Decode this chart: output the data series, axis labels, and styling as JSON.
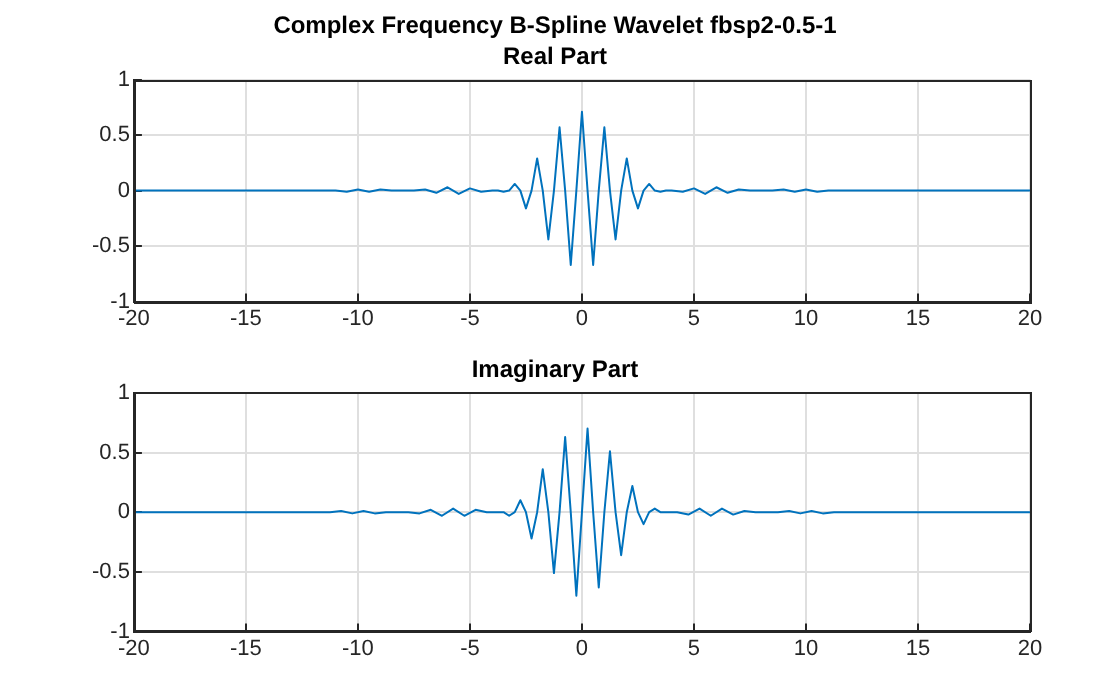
{
  "chart_data": [
    {
      "type": "line",
      "title": "Complex Frequency B-Spline Wavelet fbsp2-0.5-1",
      "subtitle": "Real Part",
      "series": [
        {
          "color": "#0072bd",
          "x": [
            -20,
            -19.5,
            -19,
            -18.5,
            -18,
            -17.5,
            -17,
            -16.5,
            -16,
            -15.5,
            -15,
            -14.5,
            -14,
            -13.5,
            -13,
            -12.5,
            -12,
            -11.5,
            -11,
            -10.5,
            -10,
            -9.5,
            -9,
            -8.5,
            -8,
            -7.5,
            -7,
            -6.5,
            -6,
            -5.5,
            -5,
            -4.5,
            -4,
            -3.75,
            -3.5,
            -3.25,
            -3,
            -2.75,
            -2.5,
            -2.25,
            -2,
            -1.75,
            -1.5,
            -1.25,
            -1,
            -0.75,
            -0.5,
            -0.25,
            0,
            0.25,
            0.5,
            0.75,
            1,
            1.25,
            1.5,
            1.75,
            2,
            2.25,
            2.5,
            2.75,
            3,
            3.25,
            3.5,
            3.75,
            4,
            4.5,
            5,
            5.5,
            6,
            6.5,
            7,
            7.5,
            8,
            8.5,
            9,
            9.5,
            10,
            10.5,
            11,
            11.5,
            12,
            12.5,
            13,
            13.5,
            14,
            14.5,
            15,
            15.5,
            16,
            16.5,
            17,
            17.5,
            18,
            18.5,
            19,
            19.5,
            20
          ],
          "values": [
            0,
            0,
            0,
            0,
            0,
            0,
            0,
            0,
            0,
            0,
            0,
            0,
            0,
            0,
            0,
            0,
            0,
            0,
            0,
            -0.01,
            0.01,
            -0.01,
            0.01,
            0,
            0,
            0,
            0.01,
            -0.02,
            0.03,
            -0.03,
            0.02,
            -0.01,
            0,
            0,
            -0.01,
            0,
            0.06,
            0,
            -0.16,
            0,
            0.29,
            0,
            -0.44,
            0,
            0.57,
            0,
            -0.67,
            0,
            0.71,
            0,
            -0.67,
            0,
            0.57,
            0,
            -0.44,
            0,
            0.29,
            0,
            -0.16,
            0,
            0.06,
            0,
            -0.01,
            0,
            0,
            -0.01,
            0.02,
            -0.03,
            0.03,
            -0.02,
            0.01,
            0,
            0,
            0,
            0.01,
            -0.01,
            0.01,
            -0.01,
            0,
            0,
            0,
            0,
            0,
            0,
            0,
            0,
            0,
            0,
            0,
            0,
            0,
            0,
            0,
            0,
            0,
            0,
            0
          ]
        }
      ],
      "xlim": [
        -20,
        20
      ],
      "xticks": [
        -20,
        -15,
        -10,
        -5,
        0,
        5,
        10,
        15,
        20
      ],
      "ylim": [
        -1,
        1
      ],
      "yticks": [
        -1,
        -0.5,
        0,
        0.5,
        1
      ],
      "grid": true,
      "legend": false
    },
    {
      "type": "line",
      "title": "Imaginary Part",
      "series": [
        {
          "color": "#0072bd",
          "x": [
            -20,
            -19.75,
            -19.25,
            -18.75,
            -18.25,
            -17.75,
            -17.25,
            -16.75,
            -16.25,
            -15.75,
            -15.25,
            -14.75,
            -14.25,
            -13.75,
            -13.25,
            -12.75,
            -12.25,
            -11.75,
            -11.25,
            -10.75,
            -10.25,
            -9.75,
            -9.25,
            -8.75,
            -8.25,
            -7.75,
            -7.25,
            -6.75,
            -6.25,
            -5.75,
            -5.25,
            -4.75,
            -4.25,
            -4,
            -3.75,
            -3.5,
            -3.25,
            -3,
            -2.75,
            -2.5,
            -2.25,
            -2,
            -1.75,
            -1.5,
            -1.25,
            -1,
            -0.75,
            -0.5,
            -0.25,
            0,
            0.25,
            0.5,
            0.75,
            1,
            1.25,
            1.5,
            1.75,
            2,
            2.25,
            2.5,
            2.75,
            3,
            3.25,
            3.5,
            3.75,
            4,
            4.25,
            4.75,
            5.25,
            5.75,
            6.25,
            6.75,
            7.25,
            7.75,
            8.25,
            8.75,
            9.25,
            9.75,
            10.25,
            10.75,
            11.25,
            11.75,
            12.25,
            12.75,
            13.25,
            13.75,
            14.25,
            14.75,
            15.25,
            15.75,
            16.25,
            16.75,
            17.25,
            17.75,
            18.25,
            18.75,
            19.25,
            19.75,
            20
          ],
          "values": [
            0,
            0,
            0,
            0,
            0,
            0,
            0,
            0,
            0,
            0,
            0,
            0,
            0,
            0,
            0,
            0,
            0,
            0,
            0,
            0.01,
            -0.01,
            0.01,
            -0.01,
            0,
            0,
            0,
            -0.01,
            0.02,
            -0.03,
            0.03,
            -0.03,
            0.02,
            0,
            0,
            0,
            0,
            -0.03,
            0,
            0.1,
            0,
            -0.22,
            0,
            0.36,
            0,
            -0.51,
            0,
            0.63,
            0,
            -0.7,
            0,
            0.7,
            0,
            -0.63,
            0,
            0.51,
            0,
            -0.36,
            0,
            0.22,
            0,
            -0.1,
            0,
            0.03,
            0,
            0,
            0,
            0,
            -0.02,
            0.03,
            -0.03,
            0.03,
            -0.02,
            0.01,
            0,
            0,
            0,
            0.01,
            -0.01,
            0.01,
            -0.01,
            0,
            0,
            0,
            0,
            0,
            0,
            0,
            0,
            0,
            0,
            0,
            0,
            0,
            0,
            0,
            0,
            0,
            0,
            0
          ]
        }
      ],
      "xlim": [
        -20,
        20
      ],
      "xticks": [
        -20,
        -15,
        -10,
        -5,
        0,
        5,
        10,
        15,
        20
      ],
      "ylim": [
        -1,
        1
      ],
      "yticks": [
        -1,
        -0.5,
        0,
        0.5,
        1
      ],
      "grid": true,
      "legend": false
    }
  ]
}
